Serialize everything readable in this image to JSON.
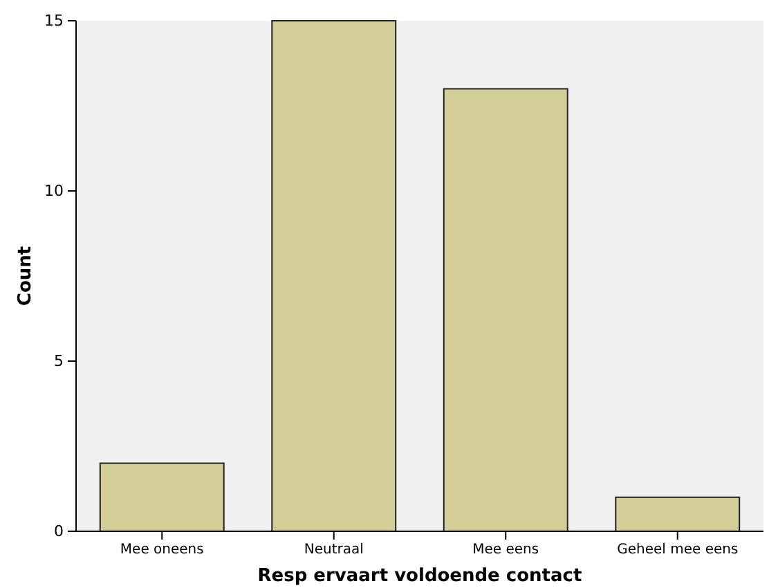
{
  "chart_data": {
    "type": "bar",
    "xlabel": "Resp ervaart voldoende contact",
    "ylabel": "Count",
    "categories": [
      "Mee oneens",
      "Neutraal",
      "Mee eens",
      "Geheel mee eens"
    ],
    "values": [
      2,
      15,
      13,
      1
    ],
    "color": "#d3ce97",
    "ylim": [
      0,
      15
    ],
    "yticks": [
      0,
      5,
      10,
      15
    ],
    "grid": false
  }
}
